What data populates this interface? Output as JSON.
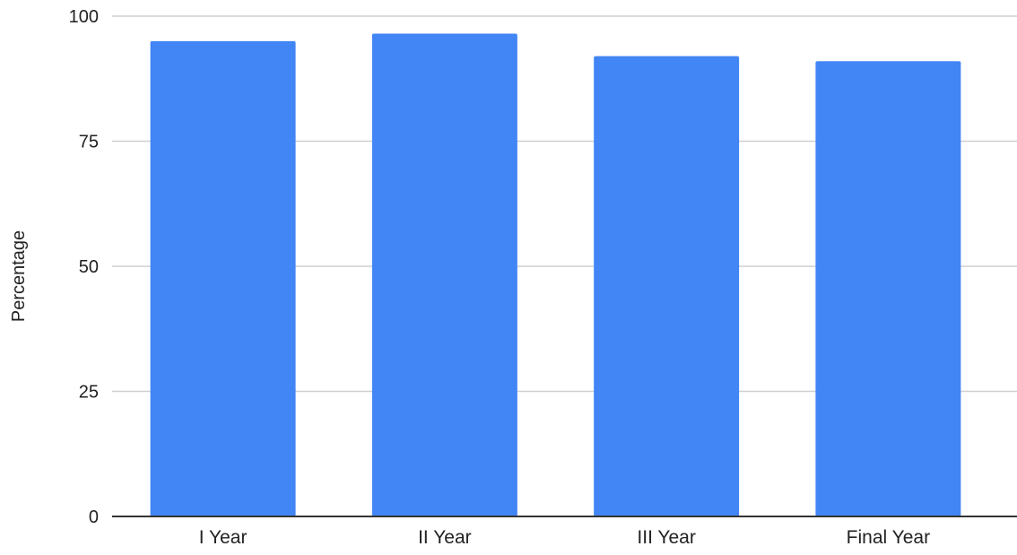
{
  "chart_data": {
    "type": "bar",
    "title": "",
    "xlabel": "",
    "ylabel": "Percentage",
    "categories": [
      "I Year",
      "II Year",
      "III Year",
      "Final Year"
    ],
    "values": [
      95,
      96.5,
      92,
      91
    ],
    "ylim": [
      0,
      100
    ],
    "yticks": [
      0,
      25,
      50,
      75,
      100
    ],
    "grid": true,
    "legend": "none",
    "bar_color": "#4285f4"
  }
}
